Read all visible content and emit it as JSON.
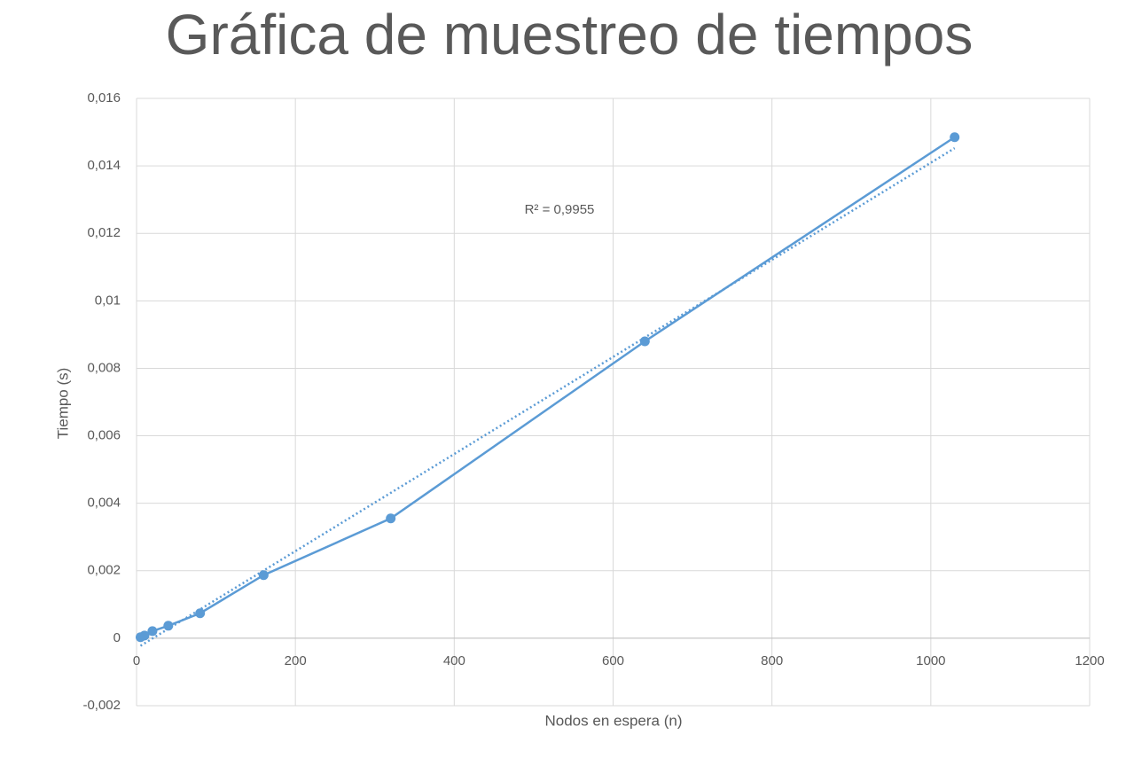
{
  "chart_data": {
    "type": "scatter-line",
    "title": "Gráfica de muestreo de tiempos",
    "x_label": "Nodos en espera (n)",
    "y_label": "Tiempo (s)",
    "annotation": "R² = 0,9955",
    "x": [
      5,
      10,
      20,
      40,
      80,
      160,
      320,
      640,
      1030
    ],
    "values": [
      3e-05,
      8e-05,
      0.00021,
      0.00037,
      0.00074,
      0.00187,
      0.00355,
      0.0088,
      0.01485
    ],
    "color": "#5b9bd5",
    "trendline": "linear",
    "xlim": [
      0,
      1200
    ],
    "xticks": [
      0,
      200,
      400,
      600,
      800,
      1000,
      1200
    ],
    "ylim": [
      -0.002,
      0.016
    ],
    "yticks": [
      {
        "value": -0.002,
        "label": "-0,002"
      },
      0,
      {
        "value": 0.002,
        "label": "0,002"
      },
      {
        "value": 0.004,
        "label": "0,004"
      },
      {
        "value": 0.006,
        "label": "0,006"
      },
      {
        "value": 0.008,
        "label": "0,008"
      },
      {
        "value": 0.01,
        "label": "0,01"
      },
      {
        "value": 0.012,
        "label": "0,012"
      },
      {
        "value": 0.014,
        "label": "0,014"
      },
      {
        "value": 0.016,
        "label": "0,016"
      }
    ],
    "grid": true
  }
}
